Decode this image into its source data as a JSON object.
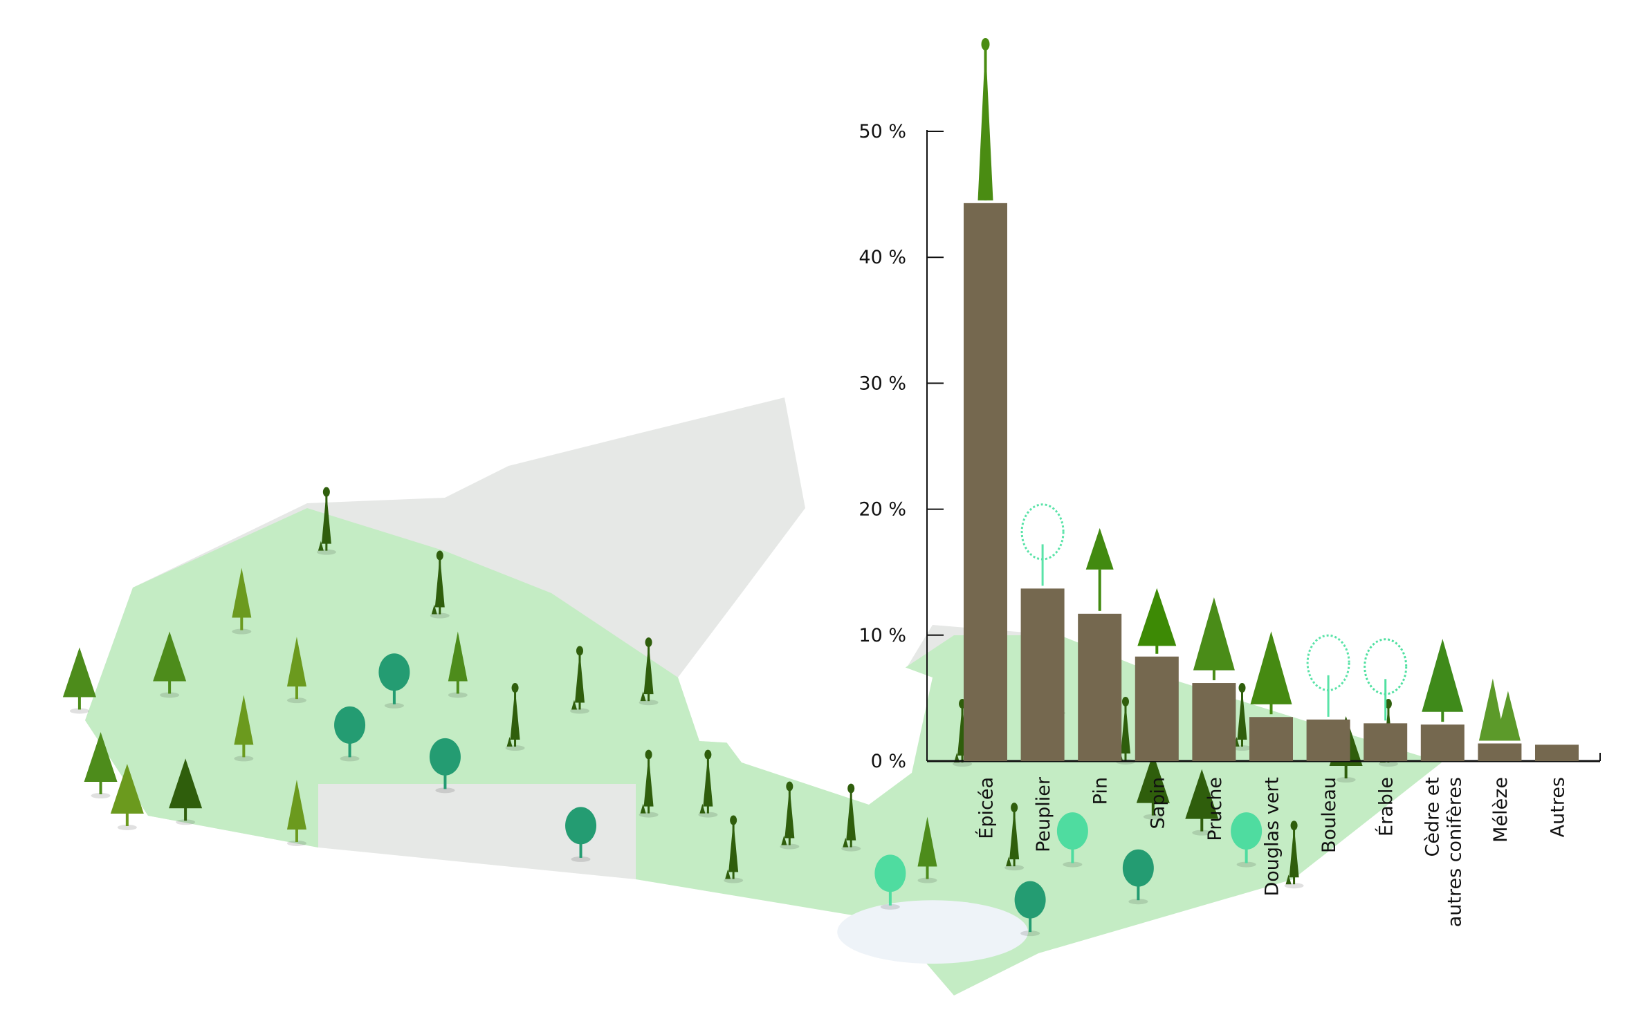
{
  "chart_data": {
    "type": "bar",
    "title": "",
    "xlabel": "",
    "ylabel": "",
    "ylim": [
      0,
      50
    ],
    "yticks": [
      0,
      10,
      20,
      30,
      40,
      50
    ],
    "ytick_labels": [
      "0 %",
      "10 %",
      "20 %",
      "30 %",
      "40 %",
      "50 %"
    ],
    "grid": false,
    "categories": [
      [
        "Épicéa"
      ],
      [
        "Peuplier"
      ],
      [
        "Pin"
      ],
      [
        "Sapin"
      ],
      [
        "Pruche"
      ],
      [
        "Douglas vert"
      ],
      [
        "Bouleau"
      ],
      [
        "Érable"
      ],
      [
        "Cèdre et",
        "autres conifères"
      ],
      [
        "Mélèze"
      ],
      [
        "Autres"
      ]
    ],
    "values": [
      44.3,
      13.7,
      11.7,
      8.3,
      6.2,
      3.5,
      3.3,
      3.0,
      2.9,
      1.4,
      1.3
    ],
    "bar_icons": [
      "spruce",
      "poplar",
      "pine",
      "fir",
      "hemlock",
      "douglas-fir",
      "birch",
      "maple",
      "cedar",
      "larch",
      ""
    ],
    "colors": {
      "bar": "#75684f",
      "axis": "#111111"
    }
  },
  "map": {
    "colors": {
      "land": "#e6e8e6",
      "forest": "#c4ecc4",
      "water": "#ffffff",
      "lakes": "#eef3f8"
    },
    "tree_colors": {
      "dark": "#2f5e0c",
      "mid": "#4d8c1b",
      "olive": "#6b9a1e",
      "teal": "#249c72",
      "mint": "#4fdca0"
    }
  }
}
